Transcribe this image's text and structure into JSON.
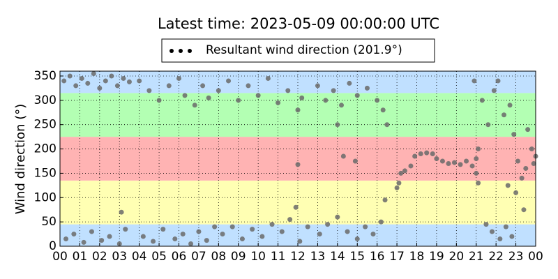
{
  "chart_data": {
    "type": "scatter",
    "title": "Latest time: 2023-05-09 00:00:00 UTC",
    "y_label": "Wind direction (°)",
    "x": [
      0.2,
      0.5,
      0.8,
      1.1,
      1.4,
      1.7,
      2.0,
      2.3,
      2.6,
      2.9,
      3.2,
      3.5,
      0.3,
      0.7,
      1.2,
      1.6,
      2.1,
      2.5,
      3.0,
      3.3,
      3.1,
      4.0,
      4.5,
      5.0,
      5.5,
      6.0,
      6.3,
      6.8,
      7.2,
      7.5,
      4.2,
      4.7,
      5.2,
      5.8,
      6.2,
      6.6,
      7.0,
      7.4,
      7.8,
      8.0,
      8.5,
      9.0,
      9.5,
      10.0,
      10.5,
      11.0,
      11.5,
      12.0,
      12.2,
      8.2,
      8.7,
      9.2,
      9.7,
      10.2,
      10.7,
      11.2,
      11.6,
      12.1,
      12.5,
      11.9,
      12.0,
      13.0,
      13.4,
      13.8,
      14.2,
      14.6,
      15.0,
      15.5,
      16.0,
      16.3,
      14.0,
      13.1,
      13.5,
      14.0,
      14.5,
      15.0,
      15.4,
      15.8,
      16.2,
      16.4,
      14.9,
      14.3,
      16.5,
      17.0,
      17.1,
      17.2,
      17.4,
      17.7,
      17.9,
      18.2,
      18.5,
      18.8,
      19.0,
      19.3,
      19.6,
      19.9,
      20.2,
      20.5,
      20.8,
      21.0,
      21.1,
      21.0,
      21.1,
      20.9,
      21.3,
      21.6,
      21.9,
      22.1,
      22.4,
      22.7,
      22.9,
      21.5,
      21.8,
      22.2,
      22.5,
      22.8,
      22.6,
      23.1,
      23.3,
      23.5,
      23.6,
      23.8,
      24.0,
      23.0,
      23.4,
      23.9
    ],
    "series": [
      {
        "name": "Resultant wind direction (201.9°)",
        "color": "#6a6a6a",
        "values": [
          340,
          350,
          330,
          345,
          335,
          355,
          325,
          340,
          350,
          330,
          345,
          338,
          15,
          25,
          8,
          30,
          12,
          20,
          5,
          35,
          70,
          340,
          320,
          300,
          330,
          345,
          310,
          290,
          330,
          305,
          20,
          10,
          35,
          15,
          25,
          5,
          30,
          12,
          40,
          320,
          340,
          300,
          330,
          310,
          345,
          295,
          320,
          280,
          305,
          25,
          40,
          15,
          35,
          20,
          45,
          30,
          55,
          10,
          40,
          80,
          168,
          330,
          300,
          320,
          290,
          335,
          310,
          325,
          300,
          280,
          250,
          25,
          45,
          60,
          30,
          15,
          40,
          25,
          50,
          95,
          175,
          185,
          250,
          120,
          130,
          150,
          155,
          165,
          185,
          190,
          192,
          190,
          180,
          175,
          170,
          172,
          168,
          175,
          165,
          180,
          200,
          150,
          130,
          340,
          300,
          250,
          320,
          340,
          270,
          290,
          230,
          45,
          30,
          15,
          40,
          20,
          125,
          175,
          140,
          160,
          240,
          200,
          185,
          110,
          75,
          170
        ]
      }
    ],
    "bands": [
      {
        "from": 0,
        "to": 45,
        "color": "#c0e0ff"
      },
      {
        "from": 45,
        "to": 135,
        "color": "#ffffb3"
      },
      {
        "from": 135,
        "to": 225,
        "color": "#ffb3b3"
      },
      {
        "from": 225,
        "to": 315,
        "color": "#b3ffb3"
      },
      {
        "from": 315,
        "to": 360,
        "color": "#c0e0ff"
      }
    ],
    "xlim": [
      0,
      24
    ],
    "ylim": [
      0,
      360
    ],
    "xticks": [
      {
        "value": 0,
        "label": "00"
      },
      {
        "value": 1,
        "label": "01"
      },
      {
        "value": 2,
        "label": "02"
      },
      {
        "value": 3,
        "label": "03"
      },
      {
        "value": 4,
        "label": "04"
      },
      {
        "value": 5,
        "label": "05"
      },
      {
        "value": 6,
        "label": "06"
      },
      {
        "value": 7,
        "label": "07"
      },
      {
        "value": 8,
        "label": "08"
      },
      {
        "value": 9,
        "label": "09"
      },
      {
        "value": 10,
        "label": "10"
      },
      {
        "value": 11,
        "label": "11"
      },
      {
        "value": 12,
        "label": "12"
      },
      {
        "value": 13,
        "label": "13"
      },
      {
        "value": 14,
        "label": "14"
      },
      {
        "value": 15,
        "label": "15"
      },
      {
        "value": 16,
        "label": "16"
      },
      {
        "value": 17,
        "label": "17"
      },
      {
        "value": 18,
        "label": "18"
      },
      {
        "value": 19,
        "label": "19"
      },
      {
        "value": 20,
        "label": "20"
      },
      {
        "value": 21,
        "label": "21"
      },
      {
        "value": 22,
        "label": "22"
      },
      {
        "value": 23,
        "label": "23"
      },
      {
        "value": 24,
        "label": "00"
      }
    ],
    "yticks": [
      0,
      50,
      100,
      150,
      200,
      250,
      300,
      350
    ],
    "grid": true,
    "legend": "top"
  }
}
